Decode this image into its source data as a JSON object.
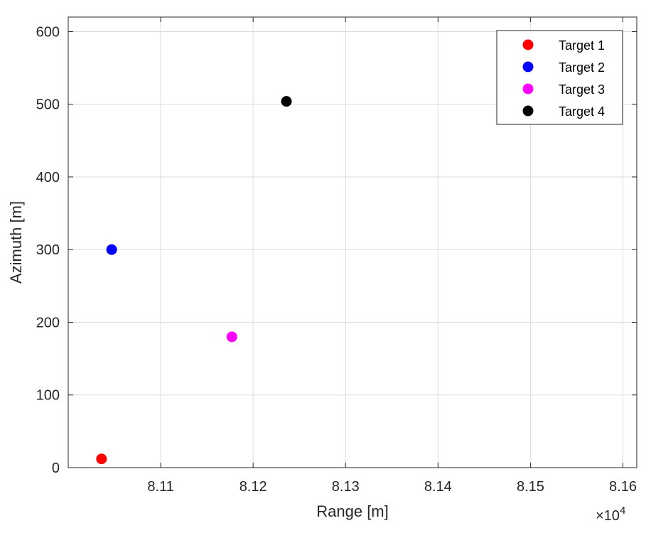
{
  "chart_data": {
    "type": "scatter",
    "title": "",
    "xlabel": "Range [m]",
    "ylabel": "Azimuth [m]",
    "x_exponent_label": "×10",
    "x_exponent_power": "4",
    "xlim": [
      81000,
      81615
    ],
    "ylim": [
      0,
      620
    ],
    "xticks": [
      81100,
      81200,
      81300,
      81400,
      81500,
      81600
    ],
    "xtick_labels": [
      "8.11",
      "8.12",
      "8.13",
      "8.14",
      "8.15",
      "8.16"
    ],
    "yticks": [
      0,
      100,
      200,
      300,
      400,
      500,
      600
    ],
    "ytick_labels": [
      "0",
      "100",
      "200",
      "300",
      "400",
      "500",
      "600"
    ],
    "grid": true,
    "legend_position": "top-right",
    "series": [
      {
        "name": "Target 1",
        "color": "#ff0000",
        "x": [
          81036
        ],
        "y": [
          12
        ]
      },
      {
        "name": "Target 2",
        "color": "#0000ff",
        "x": [
          81047
        ],
        "y": [
          300
        ]
      },
      {
        "name": "Target 3",
        "color": "#ff00ff",
        "x": [
          81177
        ],
        "y": [
          180
        ]
      },
      {
        "name": "Target 4",
        "color": "#000000",
        "x": [
          81236
        ],
        "y": [
          504
        ]
      }
    ]
  }
}
